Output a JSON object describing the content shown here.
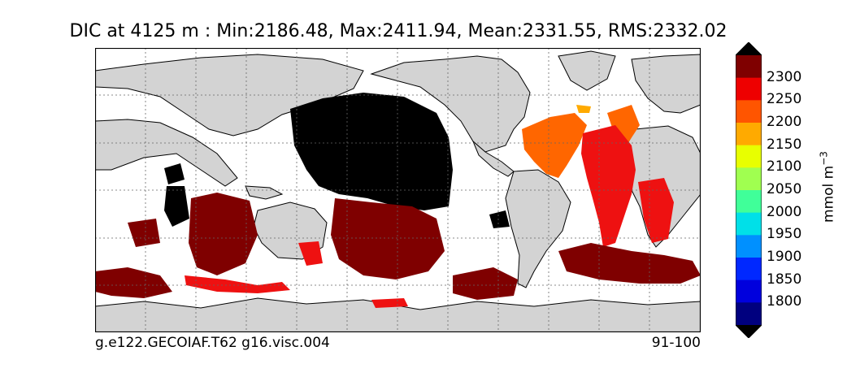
{
  "title": "DIC at 4125 m : Min:2186.48, Max:2411.94, Mean:2331.55, RMS:2332.02",
  "footer": {
    "left": "g.e122.GECOIAF.T62 g16.visc.004",
    "right": "91-100"
  },
  "colorbar": {
    "unit_base": "mmol m",
    "unit_exp": "−3",
    "ticks": [
      "1800",
      "1850",
      "1900",
      "1950",
      "2000",
      "2050",
      "2100",
      "2150",
      "2200",
      "2250",
      "2300"
    ],
    "colors": [
      "#00007f",
      "#0000dd",
      "#0028ff",
      "#0090ff",
      "#00e0e8",
      "#40ff99",
      "#a0ff50",
      "#e8ff00",
      "#ffaa00",
      "#ff5500",
      "#ee0000",
      "#7f0000"
    ]
  },
  "map_colors": {
    "land": "#d3d3d3",
    "ocean_nodata": "#ffffff",
    "black_region": "#000000",
    "dark_red": "#7f0000",
    "red": "#ee1111",
    "orange": "#ff6600",
    "yellow_orange": "#ffaa00"
  }
}
